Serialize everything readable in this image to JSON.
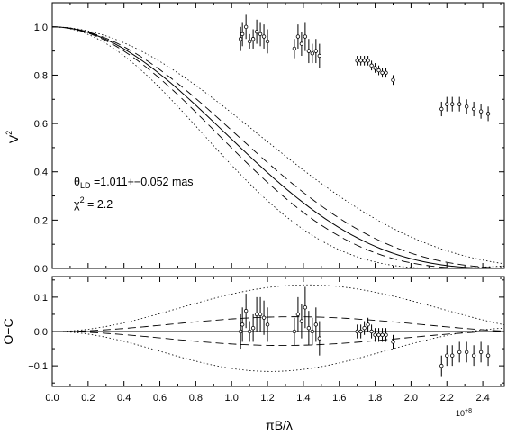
{
  "chart_data": [
    {
      "panel": "top",
      "type": "scatter",
      "ylabel_base": "V",
      "ylabel_sup": "2",
      "xlim": [
        0.0,
        2.52
      ],
      "ylim": [
        0.0,
        1.1
      ],
      "yticks": [
        0.0,
        0.2,
        0.4,
        0.6,
        0.8,
        1.0
      ],
      "ytick_labels": [
        "0.0",
        "0.2",
        "0.4",
        "0.6",
        "0.8",
        "1.0"
      ],
      "annotation_theta_symbol": "θ",
      "annotation_theta_sub": "LD",
      "annotation_theta_text": " =1.011+−0.052 mas",
      "annotation_chi_symbol": "χ",
      "annotation_chi_sup": "2",
      "annotation_chi_text": " = 2.2",
      "theta_ld_mas": 1.011,
      "theta_err_mas": 0.052,
      "model_curves": [
        "best-fit (solid)",
        "±1σ (dashed)",
        "±3σ (dotted)"
      ],
      "points": [
        {
          "x": 1.05,
          "y": 0.95,
          "err": 0.05
        },
        {
          "x": 1.06,
          "y": 0.97,
          "err": 0.05
        },
        {
          "x": 1.08,
          "y": 1.0,
          "err": 0.05
        },
        {
          "x": 1.1,
          "y": 0.94,
          "err": 0.03
        },
        {
          "x": 1.12,
          "y": 0.95,
          "err": 0.04
        },
        {
          "x": 1.14,
          "y": 0.98,
          "err": 0.05
        },
        {
          "x": 1.16,
          "y": 0.97,
          "err": 0.05
        },
        {
          "x": 1.18,
          "y": 0.96,
          "err": 0.05
        },
        {
          "x": 1.2,
          "y": 0.94,
          "err": 0.05
        },
        {
          "x": 1.35,
          "y": 0.91,
          "err": 0.04
        },
        {
          "x": 1.37,
          "y": 0.96,
          "err": 0.05
        },
        {
          "x": 1.39,
          "y": 0.93,
          "err": 0.05
        },
        {
          "x": 1.41,
          "y": 0.96,
          "err": 0.06
        },
        {
          "x": 1.43,
          "y": 0.9,
          "err": 0.05
        },
        {
          "x": 1.45,
          "y": 0.89,
          "err": 0.04
        },
        {
          "x": 1.47,
          "y": 0.9,
          "err": 0.05
        },
        {
          "x": 1.49,
          "y": 0.88,
          "err": 0.05
        },
        {
          "x": 1.7,
          "y": 0.86,
          "err": 0.02
        },
        {
          "x": 1.72,
          "y": 0.86,
          "err": 0.02
        },
        {
          "x": 1.74,
          "y": 0.86,
          "err": 0.02
        },
        {
          "x": 1.76,
          "y": 0.86,
          "err": 0.02
        },
        {
          "x": 1.78,
          "y": 0.84,
          "err": 0.02
        },
        {
          "x": 1.8,
          "y": 0.83,
          "err": 0.02
        },
        {
          "x": 1.82,
          "y": 0.82,
          "err": 0.02
        },
        {
          "x": 1.84,
          "y": 0.81,
          "err": 0.02
        },
        {
          "x": 1.86,
          "y": 0.81,
          "err": 0.02
        },
        {
          "x": 1.9,
          "y": 0.78,
          "err": 0.02
        },
        {
          "x": 2.17,
          "y": 0.66,
          "err": 0.03
        },
        {
          "x": 2.2,
          "y": 0.68,
          "err": 0.03
        },
        {
          "x": 2.23,
          "y": 0.68,
          "err": 0.03
        },
        {
          "x": 2.27,
          "y": 0.68,
          "err": 0.03
        },
        {
          "x": 2.31,
          "y": 0.67,
          "err": 0.03
        },
        {
          "x": 2.35,
          "y": 0.66,
          "err": 0.03
        },
        {
          "x": 2.39,
          "y": 0.65,
          "err": 0.03
        },
        {
          "x": 2.43,
          "y": 0.64,
          "err": 0.03
        }
      ]
    },
    {
      "panel": "bottom",
      "type": "scatter",
      "ylabel": "O−C",
      "xlabel": "πB/λ",
      "x_multiplier_base": "10",
      "x_multiplier_sup": "+8",
      "xlim": [
        0.0,
        2.52
      ],
      "ylim": [
        -0.16,
        0.16
      ],
      "xticks": [
        0.0,
        0.2,
        0.4,
        0.6,
        0.8,
        1.0,
        1.2,
        1.4,
        1.6,
        1.8,
        2.0,
        2.2,
        2.4
      ],
      "xtick_labels": [
        "0.0",
        "0.2",
        "0.4",
        "0.6",
        "0.8",
        "1.0",
        "1.2",
        "1.4",
        "1.6",
        "1.8",
        "2.0",
        "2.2",
        "2.4"
      ],
      "yticks": [
        -0.1,
        0.0,
        0.1
      ],
      "ytick_labels": [
        "−0.1",
        "0.0",
        "0.1"
      ],
      "points": [
        {
          "x": 1.05,
          "y": 0.0,
          "err": 0.05
        },
        {
          "x": 1.06,
          "y": 0.02,
          "err": 0.05
        },
        {
          "x": 1.08,
          "y": 0.06,
          "err": 0.05
        },
        {
          "x": 1.1,
          "y": 0.0,
          "err": 0.03
        },
        {
          "x": 1.12,
          "y": 0.01,
          "err": 0.04
        },
        {
          "x": 1.14,
          "y": 0.05,
          "err": 0.05
        },
        {
          "x": 1.16,
          "y": 0.05,
          "err": 0.05
        },
        {
          "x": 1.18,
          "y": 0.04,
          "err": 0.05
        },
        {
          "x": 1.2,
          "y": 0.02,
          "err": 0.05
        },
        {
          "x": 1.35,
          "y": 0.0,
          "err": 0.04
        },
        {
          "x": 1.37,
          "y": 0.05,
          "err": 0.05
        },
        {
          "x": 1.39,
          "y": 0.03,
          "err": 0.05
        },
        {
          "x": 1.41,
          "y": 0.07,
          "err": 0.06
        },
        {
          "x": 1.43,
          "y": 0.01,
          "err": 0.05
        },
        {
          "x": 1.45,
          "y": 0.0,
          "err": 0.04
        },
        {
          "x": 1.47,
          "y": 0.02,
          "err": 0.05
        },
        {
          "x": 1.49,
          "y": -0.02,
          "err": 0.05
        },
        {
          "x": 1.7,
          "y": 0.0,
          "err": 0.02
        },
        {
          "x": 1.72,
          "y": 0.0,
          "err": 0.02
        },
        {
          "x": 1.74,
          "y": 0.01,
          "err": 0.02
        },
        {
          "x": 1.76,
          "y": 0.02,
          "err": 0.02
        },
        {
          "x": 1.78,
          "y": 0.0,
          "err": 0.02
        },
        {
          "x": 1.8,
          "y": -0.01,
          "err": 0.02
        },
        {
          "x": 1.82,
          "y": -0.01,
          "err": 0.02
        },
        {
          "x": 1.84,
          "y": -0.01,
          "err": 0.02
        },
        {
          "x": 1.86,
          "y": -0.01,
          "err": 0.02
        },
        {
          "x": 1.9,
          "y": -0.03,
          "err": 0.02
        },
        {
          "x": 2.17,
          "y": -0.1,
          "err": 0.03
        },
        {
          "x": 2.2,
          "y": -0.07,
          "err": 0.03
        },
        {
          "x": 2.23,
          "y": -0.07,
          "err": 0.03
        },
        {
          "x": 2.27,
          "y": -0.06,
          "err": 0.03
        },
        {
          "x": 2.31,
          "y": -0.06,
          "err": 0.03
        },
        {
          "x": 2.35,
          "y": -0.07,
          "err": 0.03
        },
        {
          "x": 2.39,
          "y": -0.06,
          "err": 0.03
        },
        {
          "x": 2.43,
          "y": -0.07,
          "err": 0.03
        }
      ]
    }
  ]
}
